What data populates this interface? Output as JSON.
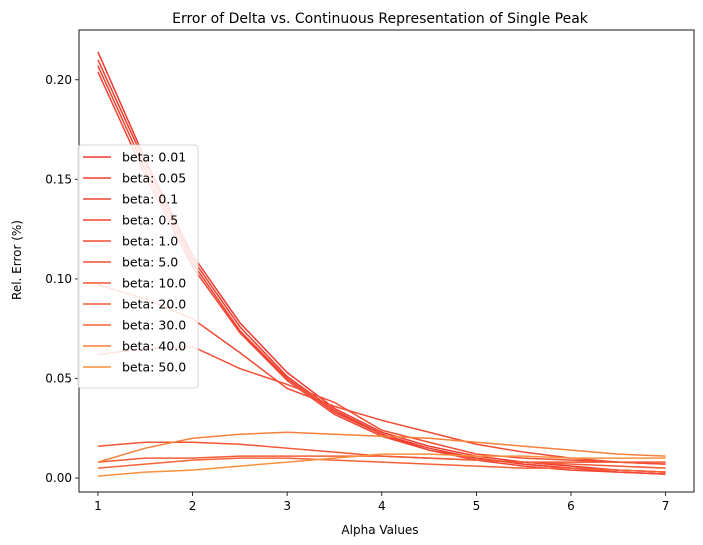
{
  "chart_data": {
    "type": "line",
    "title": "Error of Delta vs. Continuous Representation of Single Peak",
    "xlabel": "Alpha Values",
    "ylabel": "Rel. Error (%)",
    "xlim": [
      0.8,
      7.3
    ],
    "ylim": [
      -0.007,
      0.225
    ],
    "xticks": [
      1,
      2,
      3,
      4,
      5,
      6,
      7
    ],
    "yticks": [
      0.0,
      0.05,
      0.1,
      0.15,
      0.2
    ],
    "ytick_labels": [
      "0.00",
      "0.05",
      "0.10",
      "0.15",
      "0.20"
    ],
    "grid": false,
    "legend_position": "center-left",
    "x": [
      1,
      1.5,
      2,
      2.5,
      3,
      3.5,
      4,
      4.5,
      5,
      5.5,
      6,
      6.5,
      7
    ],
    "series": [
      {
        "name": "beta: 0.01",
        "color": "#f03a2f",
        "values": [
          0.214,
          0.16,
          0.112,
          0.078,
          0.053,
          0.035,
          0.023,
          0.016,
          0.011,
          0.008,
          0.006,
          0.004,
          0.003
        ]
      },
      {
        "name": "beta: 0.05",
        "color": "#f13e30",
        "values": [
          0.21,
          0.158,
          0.11,
          0.076,
          0.051,
          0.034,
          0.022,
          0.015,
          0.01,
          0.007,
          0.005,
          0.004,
          0.003
        ]
      },
      {
        "name": "beta: 0.1",
        "color": "#f14231",
        "values": [
          0.207,
          0.155,
          0.108,
          0.074,
          0.05,
          0.033,
          0.022,
          0.014,
          0.01,
          0.007,
          0.005,
          0.003,
          0.002
        ]
      },
      {
        "name": "beta: 0.5",
        "color": "#f24632",
        "values": [
          0.204,
          0.152,
          0.106,
          0.073,
          0.049,
          0.032,
          0.021,
          0.014,
          0.009,
          0.006,
          0.004,
          0.003,
          0.002
        ]
      },
      {
        "name": "beta: 1.0",
        "color": "#f24a33",
        "values": [
          0.097,
          0.09,
          0.08,
          0.063,
          0.045,
          0.036,
          0.029,
          0.023,
          0.017,
          0.013,
          0.01,
          0.008,
          0.007
        ]
      },
      {
        "name": "beta: 5.0",
        "color": "#f34f34",
        "values": [
          0.062,
          0.065,
          0.066,
          0.055,
          0.047,
          0.038,
          0.024,
          0.018,
          0.012,
          0.01,
          0.009,
          0.008,
          0.007
        ]
      },
      {
        "name": "beta: 10.0",
        "color": "#f45535",
        "values": [
          0.016,
          0.018,
          0.018,
          0.017,
          0.015,
          0.013,
          0.011,
          0.01,
          0.009,
          0.008,
          0.008,
          0.008,
          0.008
        ]
      },
      {
        "name": "beta: 20.0",
        "color": "#f55b36",
        "values": [
          0.008,
          0.01,
          0.01,
          0.011,
          0.011,
          0.011,
          0.011,
          0.01,
          0.009,
          0.008,
          0.007,
          0.006,
          0.005
        ]
      },
      {
        "name": "beta: 30.0",
        "color": "#f66338",
        "values": [
          0.005,
          0.007,
          0.009,
          0.01,
          0.01,
          0.009,
          0.008,
          0.007,
          0.006,
          0.005,
          0.005,
          0.004,
          0.003
        ]
      },
      {
        "name": "beta: 40.0",
        "color": "#f6813a",
        "values": [
          0.008,
          0.015,
          0.02,
          0.022,
          0.023,
          0.022,
          0.021,
          0.02,
          0.018,
          0.016,
          0.014,
          0.012,
          0.011
        ]
      },
      {
        "name": "beta: 50.0",
        "color": "#f7903c",
        "values": [
          0.001,
          0.003,
          0.004,
          0.006,
          0.008,
          0.01,
          0.012,
          0.012,
          0.011,
          0.011,
          0.01,
          0.01,
          0.01
        ]
      }
    ]
  }
}
